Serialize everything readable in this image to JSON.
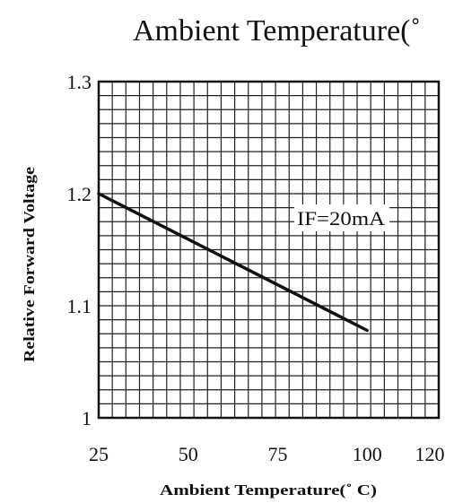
{
  "chart_data": {
    "type": "line",
    "title": "Ambient Temperature(˚",
    "xlabel": "Ambient Temperature(˚ C)",
    "ylabel": "Relative Forward Voltage",
    "x_ticks": [
      "25",
      "50",
      "75",
      "100",
      "120"
    ],
    "y_ticks": [
      "1",
      "1.1",
      "1.2",
      "1.3"
    ],
    "xlim": [
      25,
      120
    ],
    "ylim": [
      1.0,
      1.3
    ],
    "grid": true,
    "annotation": "IF=20mA",
    "series": [
      {
        "x": [
          25,
          100
        ],
        "y": [
          1.2,
          1.078
        ]
      }
    ]
  }
}
